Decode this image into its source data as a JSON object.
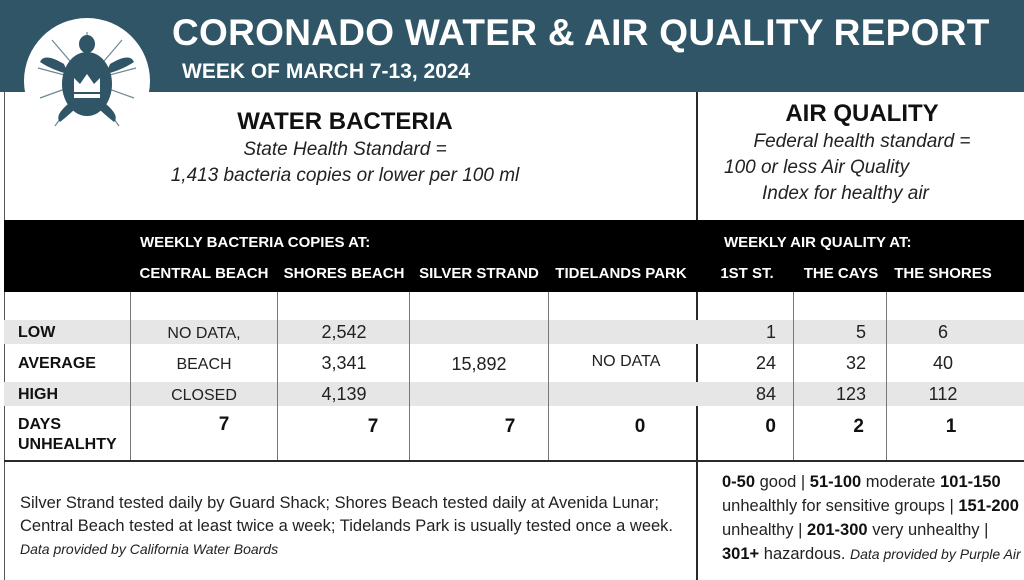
{
  "header": {
    "title": "CORONADO WATER & AIR QUALITY REPORT",
    "subtitle": "WEEK OF MARCH 7-13, 2024",
    "logo_icon": "turtle-crown-logo-icon",
    "band_color": "#2f5566"
  },
  "water": {
    "title": "WATER BACTERIA",
    "standard_line1": "State Health Standard  =",
    "standard_line2": "1,413 bacteria copies or lower per 100 ml",
    "bar_label": "WEEKLY BACTERIA COPIES AT:",
    "columns": [
      "CENTRAL BEACH",
      "SHORES BEACH",
      "SILVER STRAND",
      "TIDELANDS PARK"
    ]
  },
  "air": {
    "title": "AIR QUALITY",
    "standard_line1": "Federal health standard =",
    "standard_line2": "100 or less Air Quality",
    "standard_line3": "Index for healthy air",
    "bar_label": "WEEKLY AIR QUALITY AT:",
    "columns": [
      "1ST ST.",
      "THE CAYS",
      "THE SHORES"
    ]
  },
  "rows": {
    "low": {
      "label": "LOW",
      "central": "NO DATA,",
      "shores": "2,542",
      "air": [
        "1",
        "5",
        "6"
      ]
    },
    "average": {
      "label": "AVERAGE",
      "central": "BEACH",
      "shores": "3,341",
      "silver": "15,892",
      "tidelands": "NO DATA",
      "air": [
        "24",
        "32",
        "40"
      ]
    },
    "high": {
      "label": "HIGH",
      "central": "CLOSED",
      "shores": "4,139",
      "air": [
        "84",
        "123",
        "112"
      ]
    },
    "days": {
      "label_line1": "DAYS",
      "label_line2": "UNHEALHTY",
      "water": [
        "7",
        "7",
        "7",
        "0"
      ],
      "air": [
        "0",
        "2",
        "1"
      ]
    }
  },
  "footnote": {
    "text": "Silver Strand tested daily by Guard Shack; Shores Beach tested daily at Avenida Lunar; Central Beach tested at least twice a week; Tidelands Park is usually tested once a week.",
    "source": "Data provided by California Water Boards"
  },
  "aqi_key": {
    "r1": "0-50",
    "r1_text": "good |",
    "r2": "51-100",
    "r2_text": "moderate",
    "r3": "101-150",
    "r3_text": "unhealthly for sensitive groups |",
    "r4": "151-200",
    "r4_text": "unhealthy |",
    "r5": "201-300",
    "r5_text": "very unhealthy |",
    "r6": "301+",
    "r6_text": "hazardous.",
    "source": "Data provided by Purple Air"
  }
}
